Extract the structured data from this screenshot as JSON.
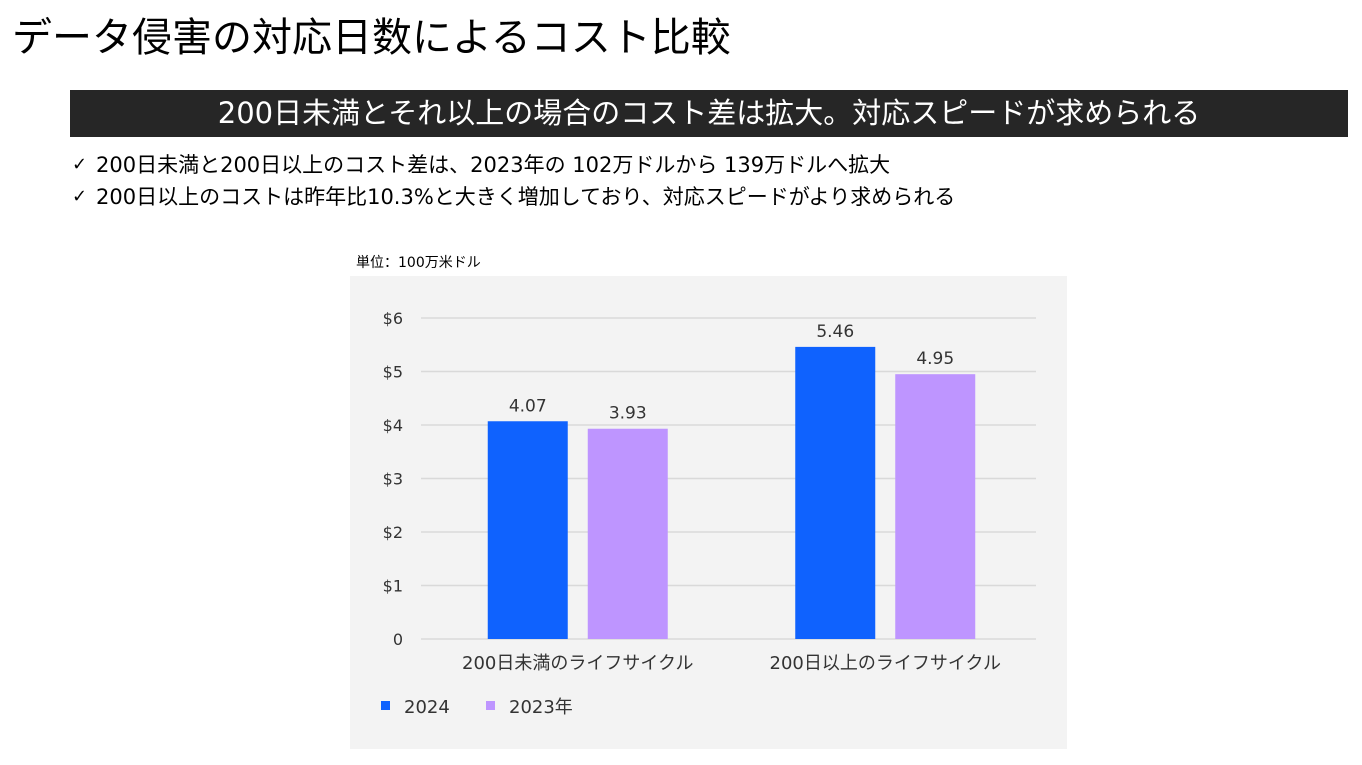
{
  "page": {
    "title": "データ侵害の対応日数によるコスト比較",
    "banner": "200日未満とそれ以上の場合のコスト差は拡大。対応スピードが求められる",
    "bullets": [
      {
        "check": "✓",
        "text": "200日未満と200日以上のコスト差は、2023年の 102万ドルから 139万ドルへ拡大"
      },
      {
        "check": "✓",
        "text": "200日以上のコストは昨年比10.3%と大きく増加しており、対応スピードがより求められる"
      }
    ],
    "unit_label": "単位：100万米ドル"
  },
  "chart_data": {
    "type": "bar",
    "title": "",
    "xlabel": "",
    "ylabel": "",
    "unit": "単位：100万米ドル",
    "categories": [
      "200日未満のライフサイクル",
      "200日以上のライフサイクル"
    ],
    "series": [
      {
        "name": "2024",
        "values": [
          4.07,
          5.46
        ],
        "labels": [
          "4.07",
          "5.46"
        ],
        "color": "#0f62fe"
      },
      {
        "name": "2023年",
        "values": [
          3.93,
          4.95
        ],
        "labels": [
          "3.93",
          "4.95"
        ],
        "color": "#be95ff"
      }
    ],
    "ylim": [
      0,
      6
    ],
    "yticks": [
      0,
      1,
      2,
      3,
      4,
      5,
      6
    ],
    "ytick_labels": [
      "0",
      "$1",
      "$2",
      "$3",
      "$4",
      "$5",
      "$6"
    ],
    "grid": true,
    "legend_position": "bottom-left",
    "colors": {
      "background": "#f3f3f3",
      "grid": "#d9d9d9",
      "text": "#333333"
    }
  }
}
